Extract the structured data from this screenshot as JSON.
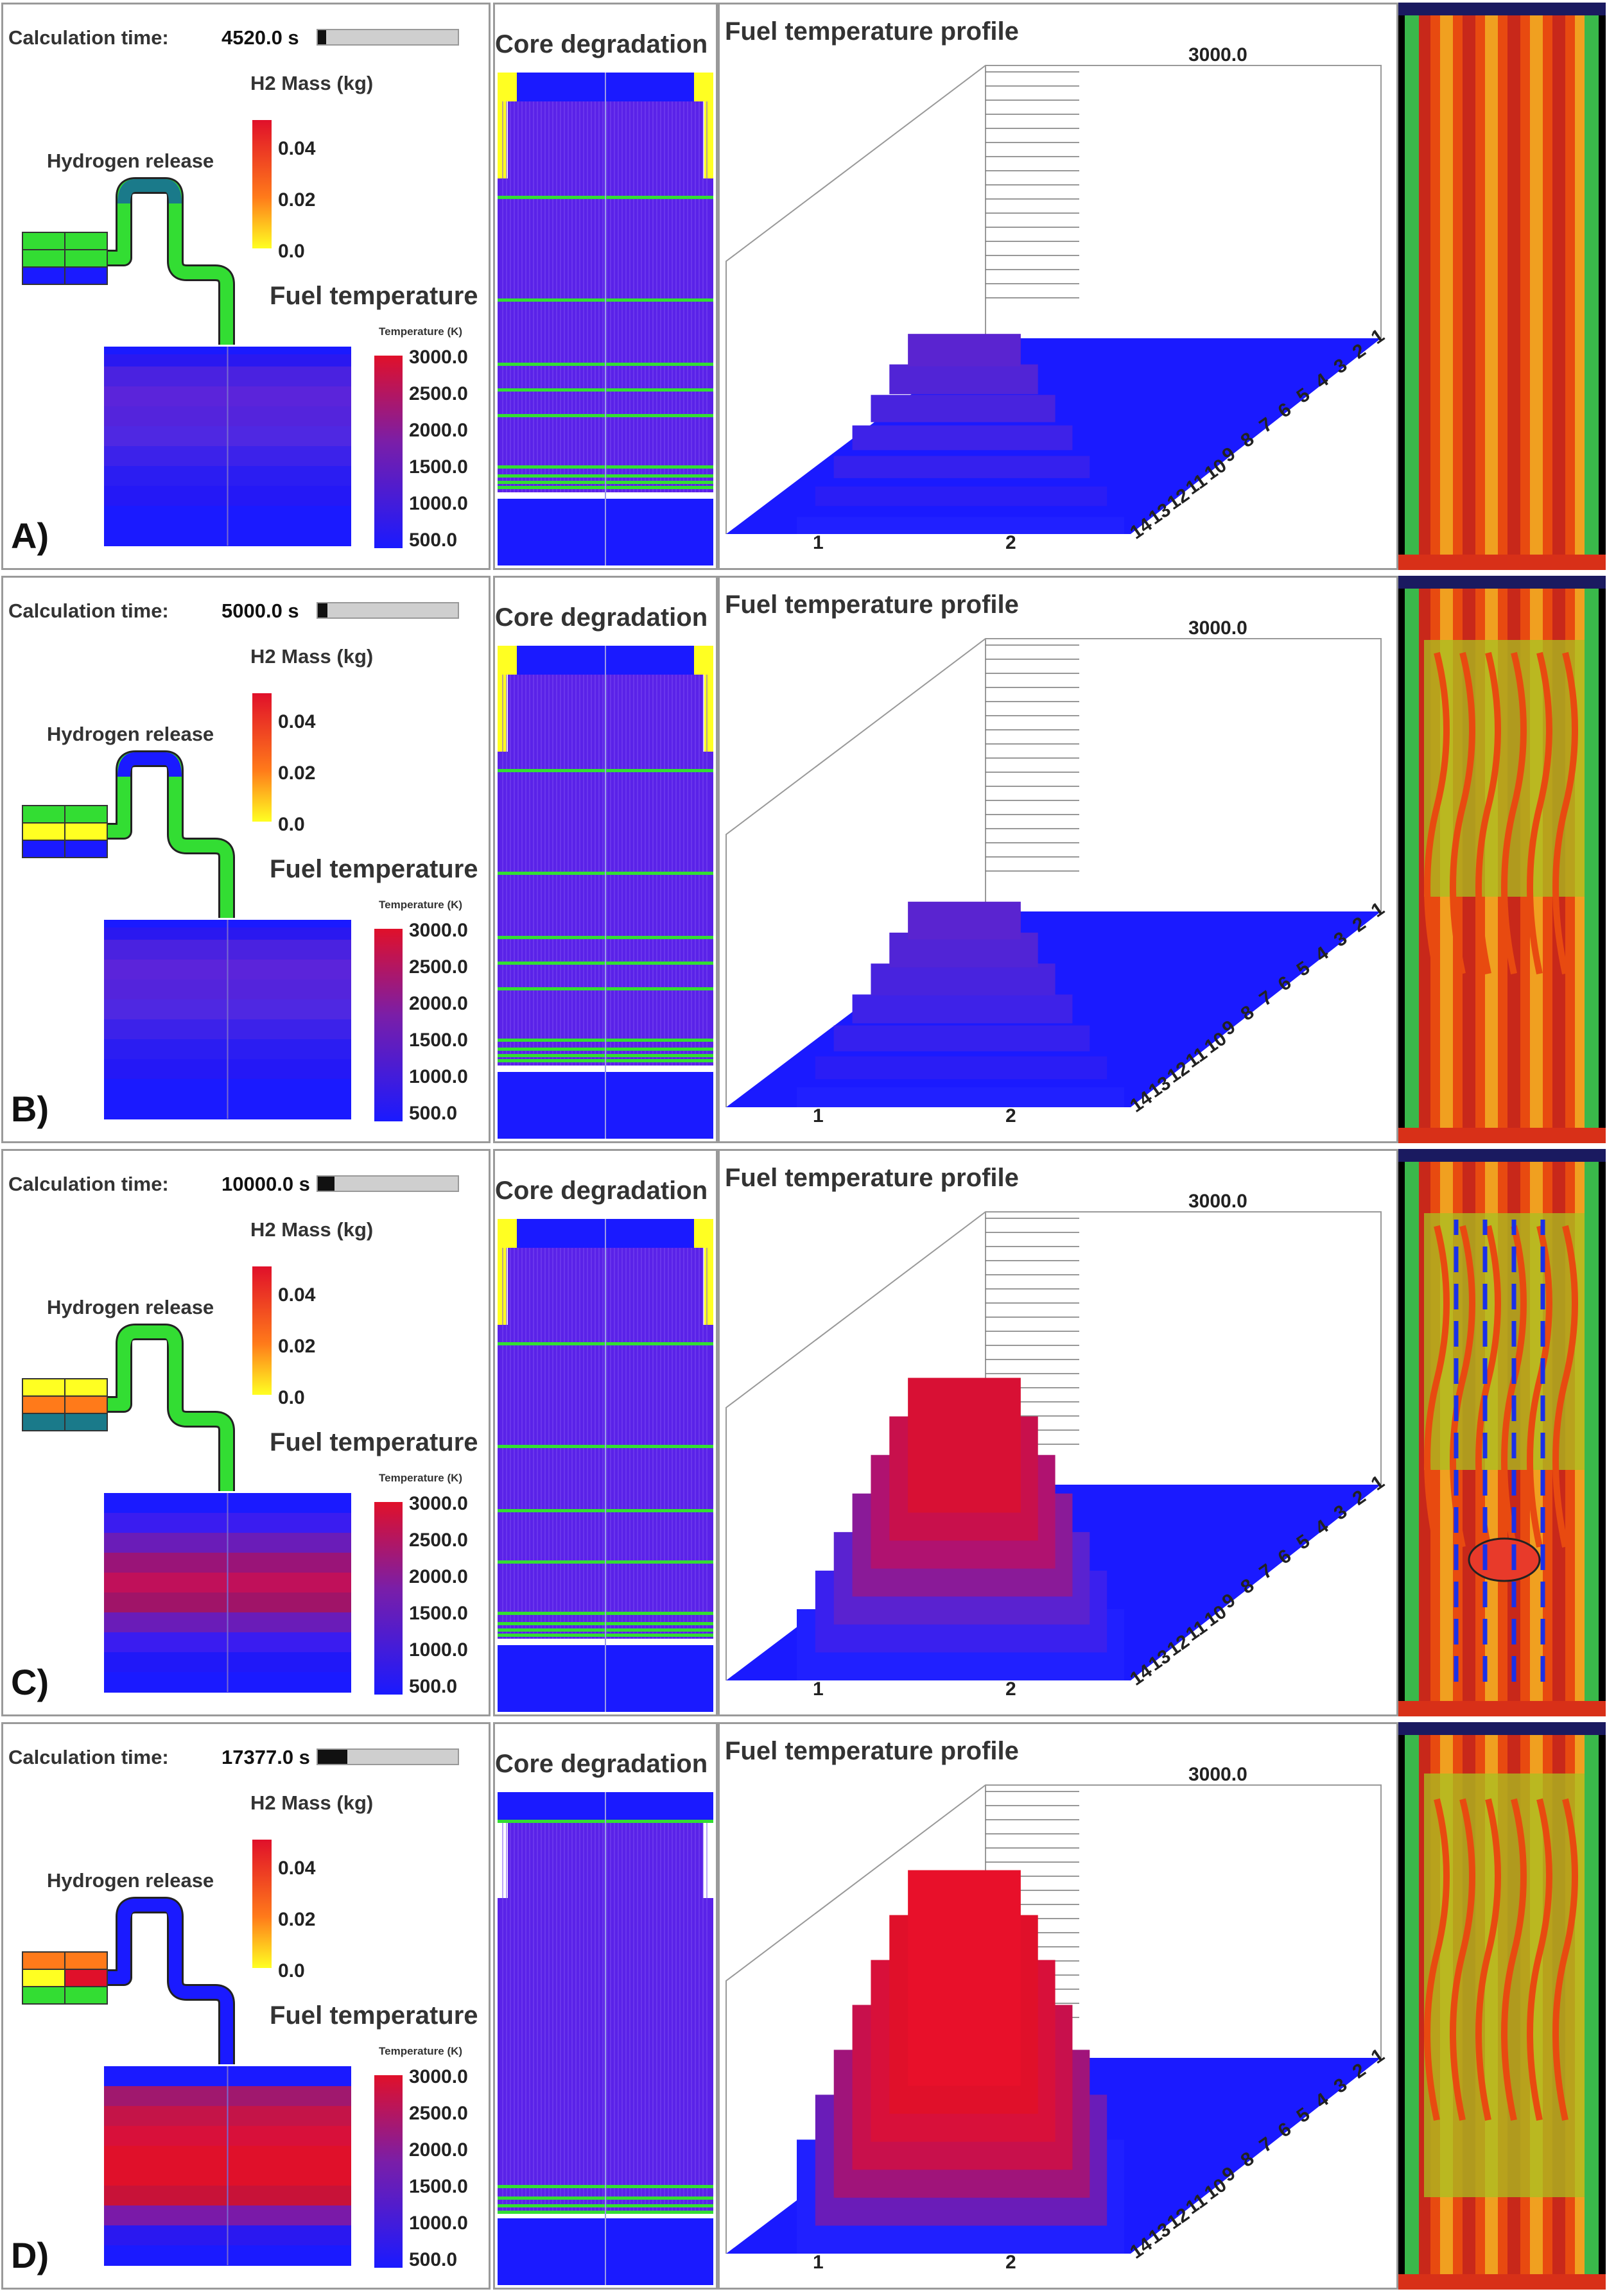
{
  "labels": {
    "calc_time": "Calculation  time:",
    "h2_mass": "H2 Mass (kg)",
    "hydrogen_release": "Hydrogen release",
    "fuel_temperature": "Fuel temperature",
    "temperature_unit": "Temperature (K)",
    "core_degradation": "Core degradation",
    "fuel_profile": "Fuel temperature profile",
    "profile_max": "3000.0"
  },
  "h2_scale": [
    "0.04",
    "0.02",
    "0.0"
  ],
  "temp_scale": [
    "3000.0",
    "2500.0",
    "2000.0",
    "1500.0",
    "1000.0",
    "500.0"
  ],
  "x_ticks": [
    "1",
    "2"
  ],
  "z_ticks": [
    "14",
    "13",
    "12",
    "11",
    "10",
    "9",
    "8",
    "7",
    "6",
    "5",
    "4",
    "3",
    "2",
    "1"
  ],
  "colors": {
    "blue": "#1a1aff",
    "violet": "#5a22d8",
    "purple": "#7a1ea8",
    "magenta": "#b0125a",
    "red": "#e0102a",
    "green": "#33dd33",
    "yellow": "#ffff22",
    "orange": "#ff7a1a",
    "teal": "#1a7a8a"
  },
  "panels": [
    {
      "letter": "A)",
      "calc_time": "4520.0 s",
      "progress": 0.06,
      "profile_level": 0.12,
      "fuel_gradient": "violet-light",
      "hydrogen_pipe": "mostly-green",
      "image_note": "intact fuel rod bundle"
    },
    {
      "letter": "B)",
      "calc_time": "5000.0 s",
      "progress": 0.07,
      "profile_level": 0.14,
      "fuel_gradient": "violet-light",
      "hydrogen_pipe": "blue-green",
      "image_note": "early degradation"
    },
    {
      "letter": "C)",
      "calc_time": "10000.0 s",
      "progress": 0.12,
      "profile_level": 0.5,
      "fuel_gradient": "mid-red",
      "hydrogen_pipe": "green",
      "image_note": "melt pool forming"
    },
    {
      "letter": "D)",
      "calc_time": "17377.0 s",
      "progress": 0.21,
      "profile_level": 0.8,
      "fuel_gradient": "strong-red",
      "hydrogen_pipe": "blue",
      "image_note": "extensive degradation"
    }
  ]
}
